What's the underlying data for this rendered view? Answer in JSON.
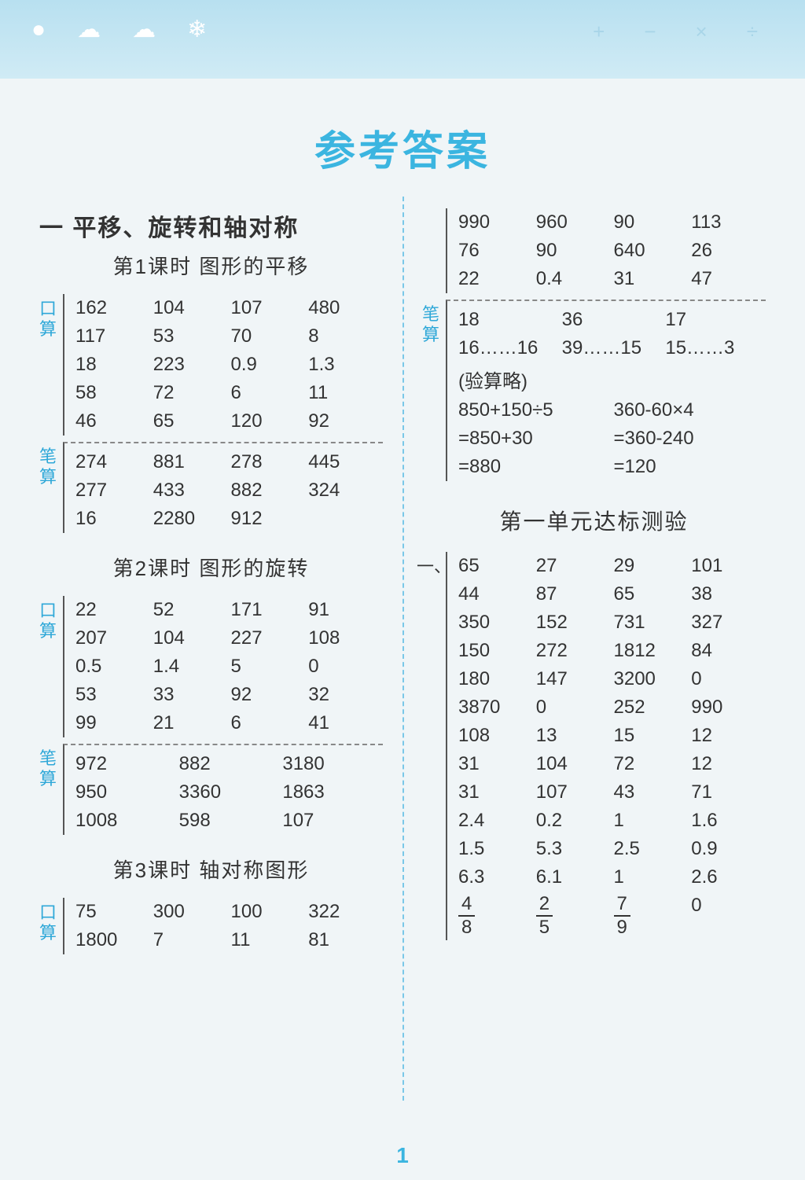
{
  "page_title": "参考答案",
  "page_number": "1",
  "colors": {
    "header_bg_top": "#b8e0f0",
    "header_bg_bottom": "#d0ebf5",
    "title_color": "#3bb5e0",
    "label_color": "#2fa8d8",
    "divider_color": "#7ac8e8",
    "text_color": "#333333",
    "page_bg": "#f0f5f7"
  },
  "labels": {
    "mental": "口算",
    "written": "笔算"
  },
  "left": {
    "chapter": "一  平移、旋转和轴对称",
    "lesson1": {
      "title": "第1课时  图形的平移",
      "mental": [
        [
          "162",
          "104",
          "107",
          "480"
        ],
        [
          "117",
          "53",
          "70",
          "8"
        ],
        [
          "18",
          "223",
          "0.9",
          "1.3"
        ],
        [
          "58",
          "72",
          "6",
          "11"
        ],
        [
          "46",
          "65",
          "120",
          "92"
        ]
      ],
      "written": [
        [
          "274",
          "881",
          "278",
          "445"
        ],
        [
          "277",
          "433",
          "882",
          "324"
        ],
        [
          "16",
          "2280",
          "912",
          ""
        ]
      ]
    },
    "lesson2": {
      "title": "第2课时  图形的旋转",
      "mental": [
        [
          "22",
          "52",
          "171",
          "91"
        ],
        [
          "207",
          "104",
          "227",
          "108"
        ],
        [
          "0.5",
          "1.4",
          "5",
          "0"
        ],
        [
          "53",
          "33",
          "92",
          "32"
        ],
        [
          "99",
          "21",
          "6",
          "41"
        ]
      ],
      "written": [
        [
          "972",
          "882",
          "3180"
        ],
        [
          "950",
          "3360",
          "1863"
        ],
        [
          "1008",
          "598",
          "107"
        ]
      ]
    },
    "lesson3": {
      "title": "第3课时  轴对称图形",
      "mental": [
        [
          "75",
          "300",
          "100",
          "322"
        ],
        [
          "1800",
          "7",
          "11",
          "81"
        ]
      ]
    }
  },
  "right": {
    "top_mental": [
      [
        "990",
        "960",
        "90",
        "113"
      ],
      [
        "76",
        "90",
        "640",
        "26"
      ],
      [
        "22",
        "0.4",
        "31",
        "47"
      ]
    ],
    "written_top": [
      [
        "18",
        "36",
        "17"
      ],
      [
        "16……16",
        "39……15",
        "15……3"
      ]
    ],
    "verify_note": "(验算略)",
    "calc": {
      "left_expr": [
        "850+150÷5",
        "=850+30",
        "=880"
      ],
      "right_expr": [
        "360-60×4",
        "=360-240",
        "=120"
      ]
    },
    "unit_test_title": "第一单元达标测验",
    "section_marker": "一、",
    "test_rows": [
      [
        "65",
        "27",
        "29",
        "101"
      ],
      [
        "44",
        "87",
        "65",
        "38"
      ],
      [
        "350",
        "152",
        "731",
        "327"
      ],
      [
        "150",
        "272",
        "1812",
        "84"
      ],
      [
        "180",
        "147",
        "3200",
        "0"
      ],
      [
        "3870",
        "0",
        "252",
        "990"
      ],
      [
        "108",
        "13",
        "15",
        "12"
      ],
      [
        "31",
        "104",
        "72",
        "12"
      ],
      [
        "31",
        "107",
        "43",
        "71"
      ],
      [
        "2.4",
        "0.2",
        "1",
        "1.6"
      ],
      [
        "1.5",
        "5.3",
        "2.5",
        "0.9"
      ],
      [
        "6.3",
        "6.1",
        "1",
        "2.6"
      ]
    ],
    "frac_row": [
      {
        "num": "4",
        "den": "8"
      },
      {
        "num": "2",
        "den": "5"
      },
      {
        "num": "7",
        "den": "9"
      },
      {
        "plain": "0"
      }
    ]
  }
}
